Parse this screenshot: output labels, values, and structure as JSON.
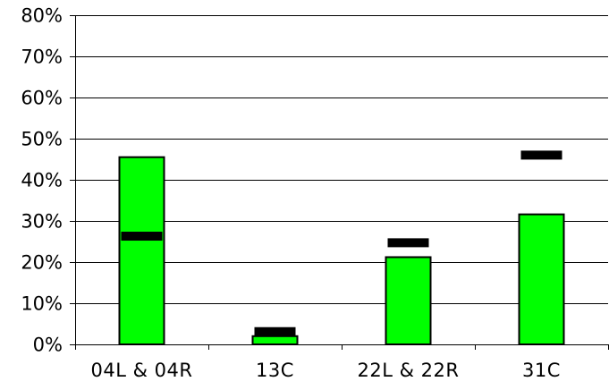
{
  "chart_data": {
    "type": "bar",
    "title": "",
    "xlabel": "",
    "ylabel": "",
    "categories": [
      "04L & 04R",
      "13C",
      "22L & 22R",
      "31C"
    ],
    "series": [
      {
        "values": [
          0.455,
          0.02,
          0.212,
          0.316
        ],
        "color": "#00ff00",
        "mark": "bar"
      },
      {
        "values": [
          0.263,
          0.031,
          0.247,
          0.46
        ],
        "color": "#000000",
        "mark": "dash"
      }
    ],
    "ylim": [
      0,
      0.8
    ],
    "yticks": [
      0,
      0.1,
      0.2,
      0.3,
      0.4,
      0.5,
      0.6,
      0.7,
      0.8
    ],
    "ytick_labels": [
      "0%",
      "10%",
      "20%",
      "30%",
      "40%",
      "50%",
      "60%",
      "70%",
      "80%"
    ],
    "grid": true,
    "legend": "none"
  }
}
